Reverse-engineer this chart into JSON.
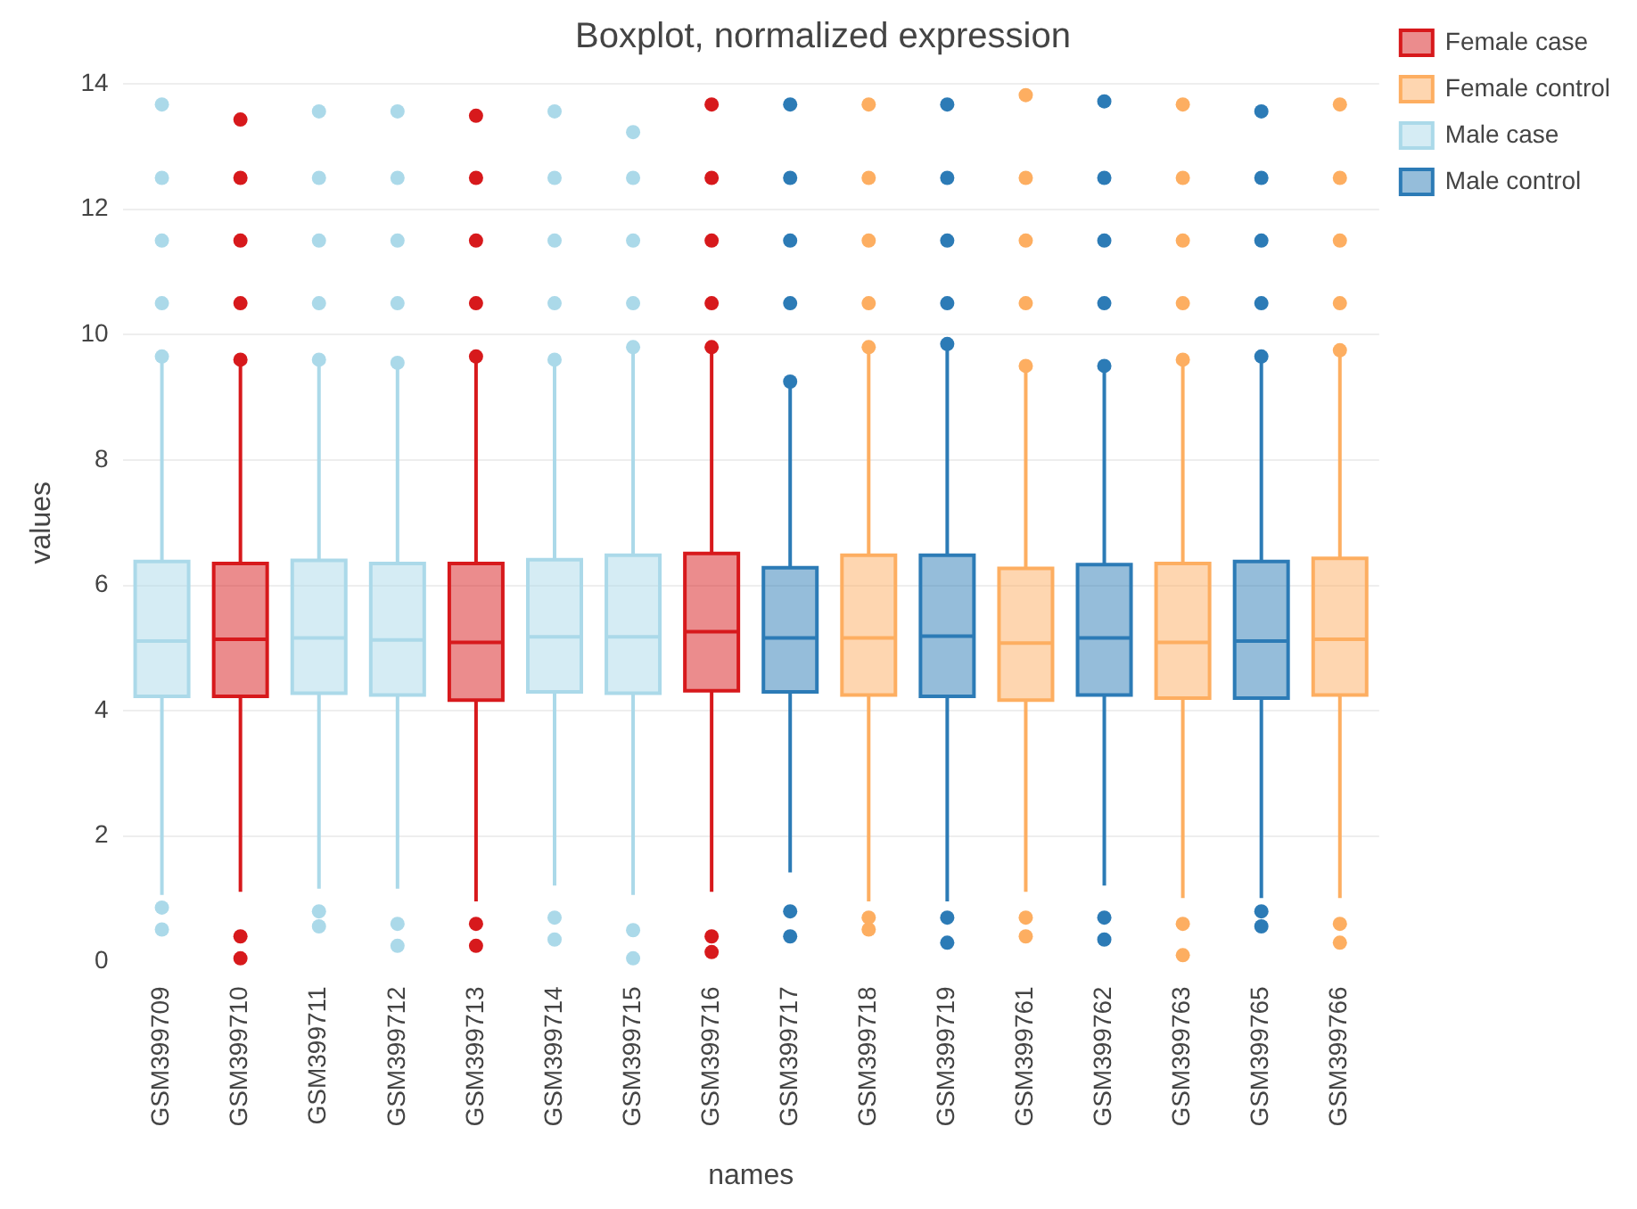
{
  "chart_data": {
    "type": "box",
    "title": "Boxplot, normalized expression",
    "xlabel": "names",
    "ylabel": "values",
    "categories": [
      "GSM399709",
      "GSM399710",
      "GSM399711",
      "GSM399712",
      "GSM399713",
      "GSM399714",
      "GSM399715",
      "GSM399716",
      "GSM399717",
      "GSM399718",
      "GSM399719",
      "GSM399761",
      "GSM399762",
      "GSM399763",
      "GSM399765",
      "GSM399766"
    ],
    "ylim": [
      0,
      14
    ],
    "yticks": [
      0,
      2,
      4,
      6,
      8,
      10,
      12,
      14
    ],
    "grid": "y",
    "legend": "top right",
    "series": [
      {
        "name": "Female case",
        "color": "#d7191c",
        "boxes": [
          null,
          {
            "low": 1.11,
            "q1": 4.23,
            "median": 5.14,
            "q3": 6.35,
            "high": 9.52,
            "outliers": [
              0.05,
              0.4,
              9.6,
              10.5,
              11.5,
              12.5,
              13.43
            ]
          },
          null,
          null,
          {
            "low": 0.96,
            "q1": 4.17,
            "median": 5.09,
            "q3": 6.35,
            "high": 9.57,
            "outliers": [
              0.25,
              0.6,
              9.65,
              10.5,
              11.5,
              12.5,
              13.49
            ]
          },
          null,
          null,
          {
            "low": 1.11,
            "q1": 4.32,
            "median": 5.26,
            "q3": 6.51,
            "high": 9.72,
            "outliers": [
              0.15,
              0.4,
              9.8,
              10.5,
              11.5,
              12.5,
              13.67
            ]
          },
          null,
          null,
          null,
          null,
          null,
          null,
          null,
          null
        ]
      },
      {
        "name": "Female control",
        "color": "#fdae61",
        "boxes": [
          null,
          null,
          null,
          null,
          null,
          null,
          null,
          null,
          null,
          {
            "low": 0.96,
            "q1": 4.25,
            "median": 5.16,
            "q3": 6.48,
            "high": 9.72,
            "outliers": [
              0.51,
              0.7,
              9.8,
              10.5,
              11.5,
              12.5,
              13.67
            ]
          },
          null,
          {
            "low": 1.11,
            "q1": 4.17,
            "median": 5.08,
            "q3": 6.27,
            "high": 9.41,
            "outliers": [
              0.4,
              0.7,
              9.5,
              10.5,
              11.5,
              12.5,
              13.82
            ]
          },
          null,
          {
            "low": 1.01,
            "q1": 4.2,
            "median": 5.09,
            "q3": 6.35,
            "high": 9.52,
            "outliers": [
              0.1,
              0.6,
              9.6,
              10.5,
              11.5,
              12.5,
              13.67
            ]
          },
          null,
          {
            "low": 1.01,
            "q1": 4.25,
            "median": 5.14,
            "q3": 6.43,
            "high": 9.67,
            "outliers": [
              0.3,
              0.6,
              9.75,
              10.5,
              11.5,
              12.5,
              13.67
            ]
          }
        ]
      },
      {
        "name": "Male case",
        "color": "#abd9e9",
        "boxes": [
          {
            "low": 1.06,
            "q1": 4.23,
            "median": 5.11,
            "q3": 6.38,
            "high": 9.57,
            "outliers": [
              0.51,
              0.86,
              9.65,
              10.5,
              11.5,
              12.5,
              13.67
            ]
          },
          null,
          {
            "low": 1.16,
            "q1": 4.28,
            "median": 5.16,
            "q3": 6.4,
            "high": 9.52,
            "outliers": [
              0.56,
              0.8,
              9.6,
              10.5,
              11.5,
              12.5,
              13.56
            ]
          },
          {
            "low": 1.16,
            "q1": 4.25,
            "median": 5.13,
            "q3": 6.35,
            "high": 9.47,
            "outliers": [
              0.25,
              0.6,
              9.55,
              10.5,
              11.5,
              12.5,
              13.56
            ]
          },
          null,
          {
            "low": 1.21,
            "q1": 4.3,
            "median": 5.18,
            "q3": 6.41,
            "high": 9.52,
            "outliers": [
              0.35,
              0.7,
              9.6,
              10.5,
              11.5,
              12.5,
              13.56
            ]
          },
          {
            "low": 1.06,
            "q1": 4.28,
            "median": 5.18,
            "q3": 6.48,
            "high": 9.72,
            "outliers": [
              0.05,
              0.5,
              9.8,
              10.5,
              11.5,
              12.5,
              13.23
            ]
          },
          null,
          null,
          null,
          null,
          null,
          null,
          null,
          null,
          null
        ]
      },
      {
        "name": "Male control",
        "color": "#2c7bb6",
        "boxes": [
          null,
          null,
          null,
          null,
          null,
          null,
          null,
          null,
          {
            "low": 1.42,
            "q1": 4.3,
            "median": 5.16,
            "q3": 6.28,
            "high": 9.16,
            "outliers": [
              0.4,
              0.8,
              9.25,
              10.5,
              11.5,
              12.5,
              13.67
            ]
          },
          null,
          {
            "low": 0.96,
            "q1": 4.23,
            "median": 5.19,
            "q3": 6.48,
            "high": 9.77,
            "outliers": [
              0.3,
              0.7,
              9.85,
              10.5,
              11.5,
              12.5,
              13.67
            ]
          },
          null,
          {
            "low": 1.21,
            "q1": 4.25,
            "median": 5.16,
            "q3": 6.33,
            "high": 9.41,
            "outliers": [
              0.35,
              0.7,
              9.5,
              10.5,
              11.5,
              12.5,
              13.72
            ]
          },
          null,
          {
            "low": 1.01,
            "q1": 4.2,
            "median": 5.11,
            "q3": 6.38,
            "high": 9.57,
            "outliers": [
              0.56,
              0.8,
              9.65,
              10.5,
              11.5,
              12.5,
              13.56
            ]
          },
          null
        ]
      }
    ]
  }
}
